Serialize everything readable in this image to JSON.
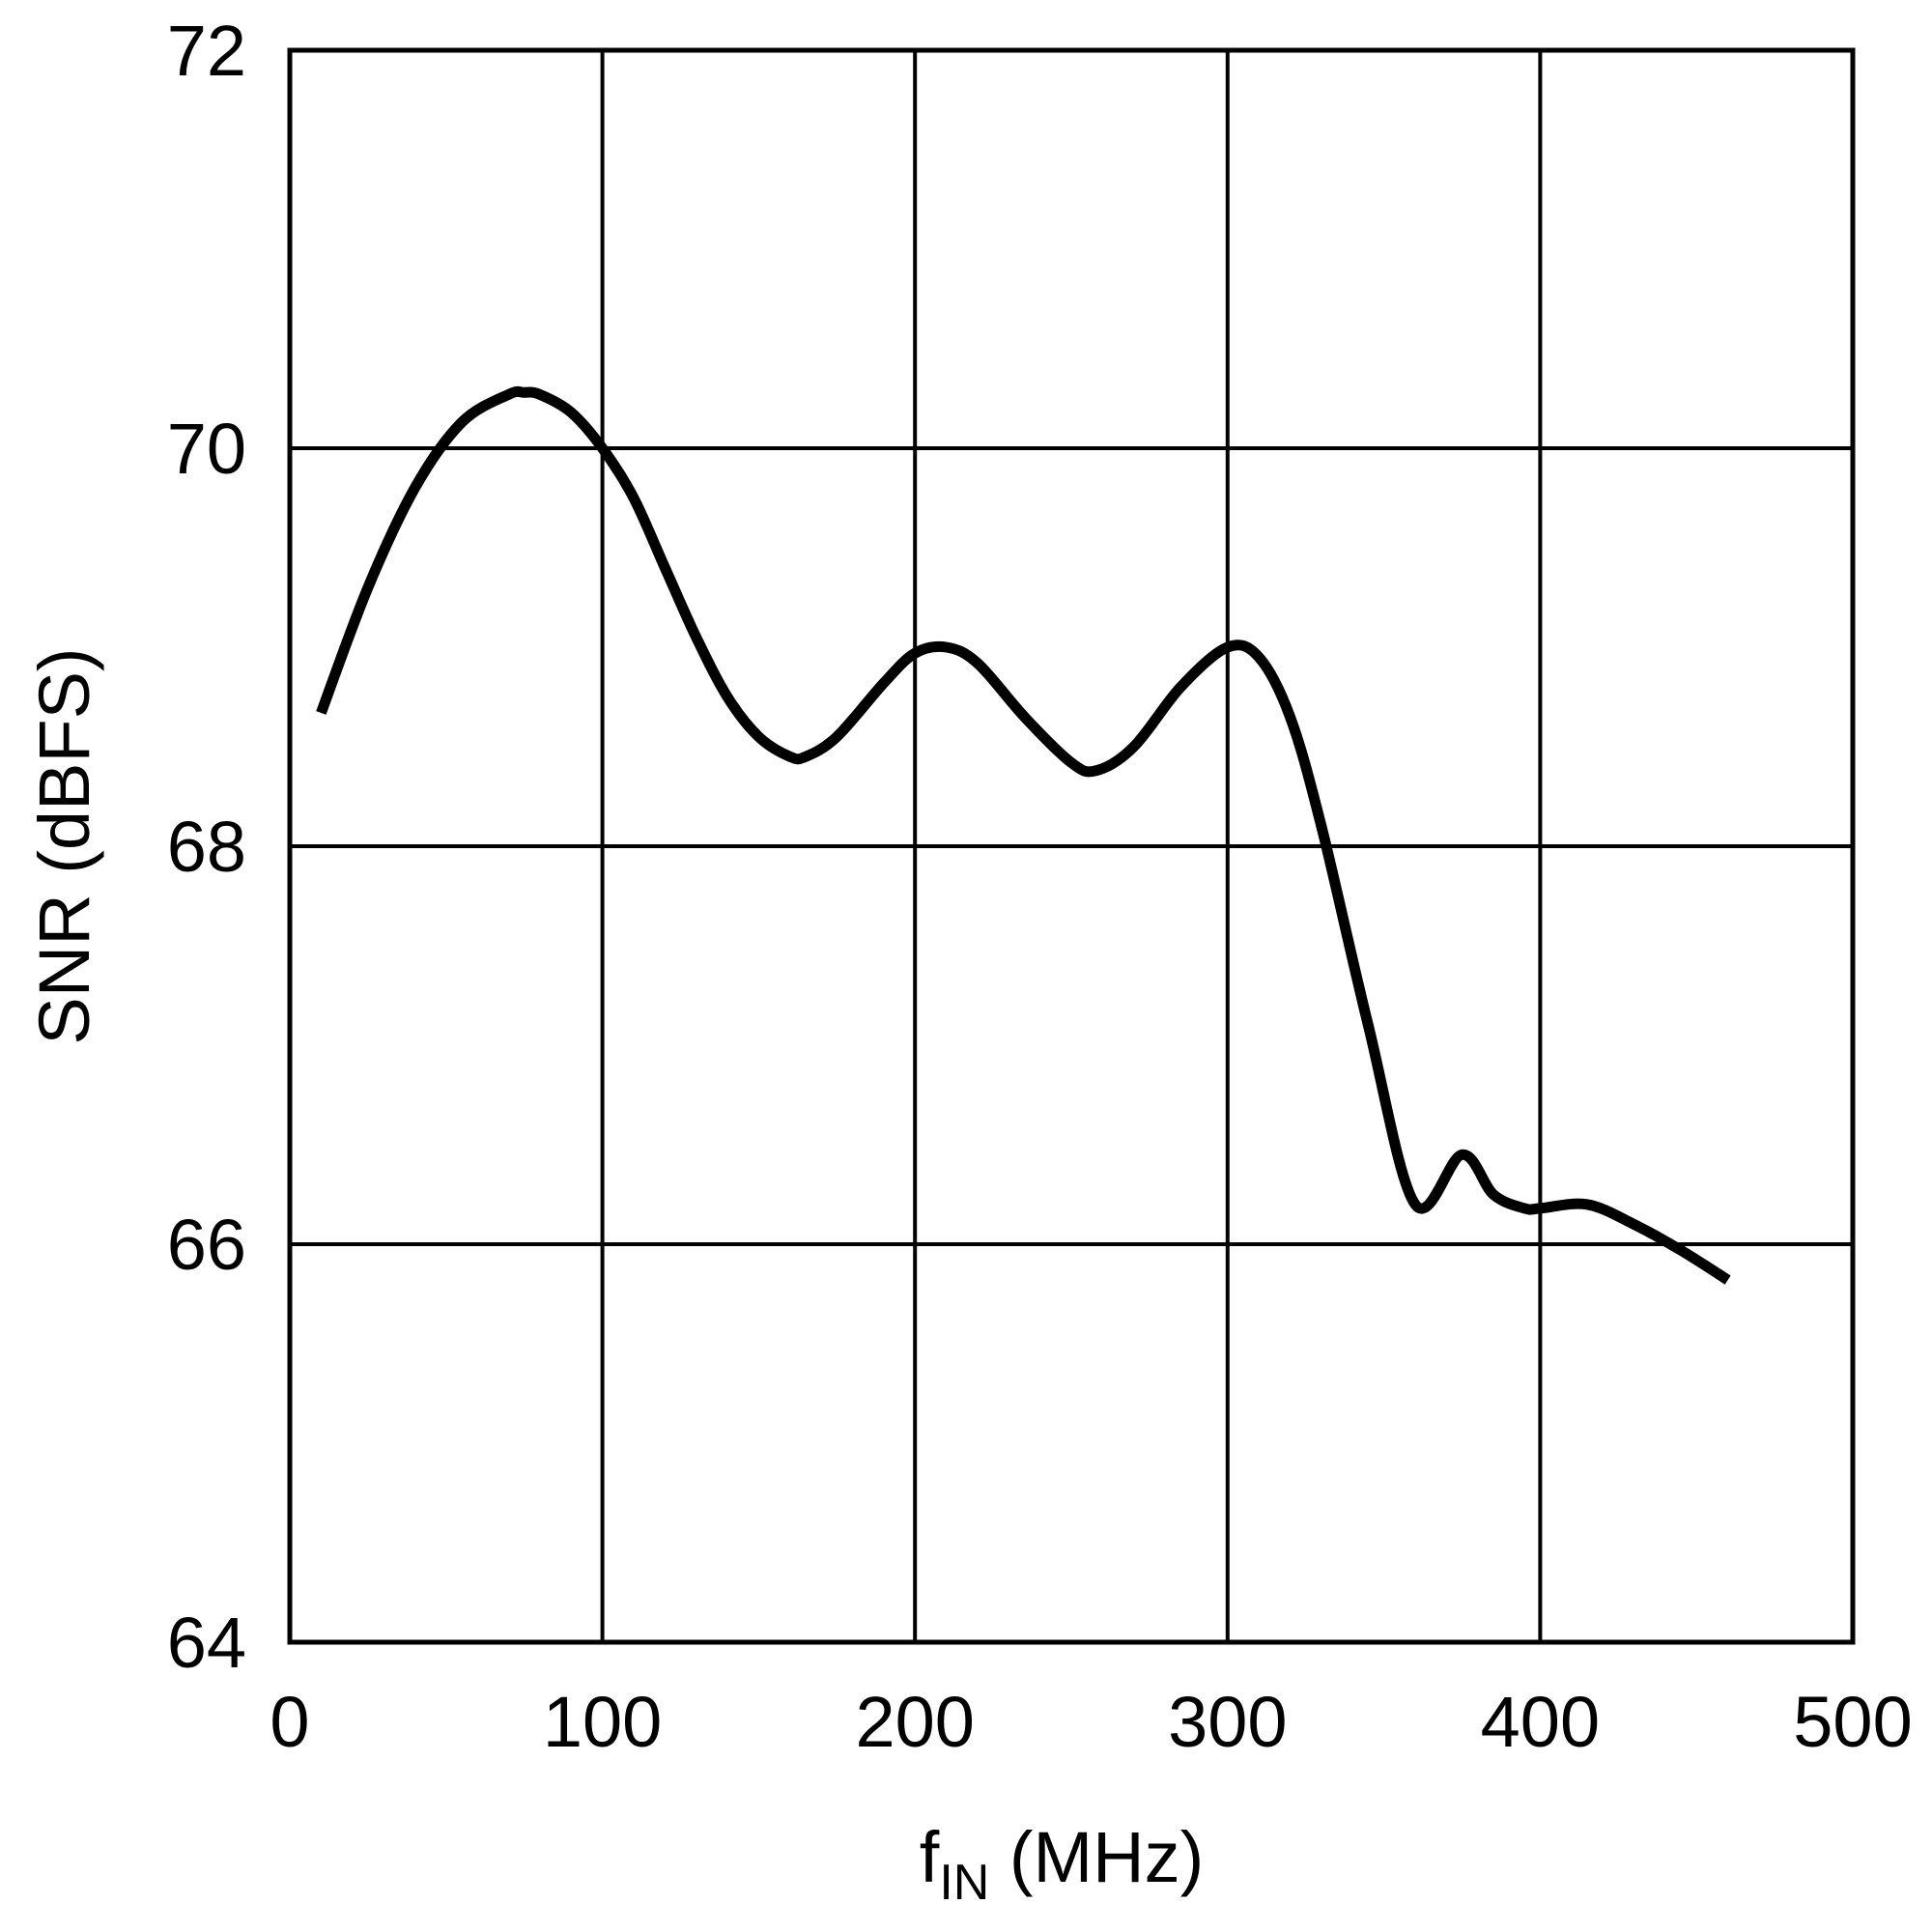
{
  "chart_data": {
    "type": "line",
    "title": "",
    "xlabel": {
      "main": "f",
      "sub": "IN",
      "rest": " (MHz)"
    },
    "ylabel": "SNR (dBFS)",
    "xlim": [
      0,
      500
    ],
    "ylim": [
      64,
      72
    ],
    "xticks": [
      "0",
      "100",
      "200",
      "300",
      "400",
      "500"
    ],
    "yticks": [
      "64",
      "66",
      "68",
      "70",
      "72"
    ],
    "grid": true,
    "legend": "none",
    "line_color": "#000000",
    "series": [
      {
        "x": [
          10,
          25,
          40,
          55,
          70,
          75,
          80,
          90,
          100,
          110,
          120,
          130,
          140,
          150,
          160,
          165,
          175,
          190,
          200,
          210,
          220,
          235,
          250,
          258,
          270,
          285,
          300,
          310,
          320,
          330,
          345,
          360,
          375,
          385,
          395,
          400,
          415,
          430,
          445,
          460
        ],
        "y": [
          68.67,
          69.3,
          69.8,
          70.13,
          70.27,
          70.28,
          70.27,
          70.18,
          70.0,
          69.75,
          69.4,
          69.05,
          68.75,
          68.55,
          68.45,
          68.45,
          68.55,
          68.82,
          68.97,
          69.0,
          68.92,
          68.65,
          68.42,
          68.38,
          68.5,
          68.8,
          69.0,
          68.95,
          68.65,
          68.1,
          67.1,
          66.2,
          66.45,
          66.25,
          66.18,
          66.18,
          66.2,
          66.1,
          65.97,
          65.82
        ]
      }
    ]
  }
}
